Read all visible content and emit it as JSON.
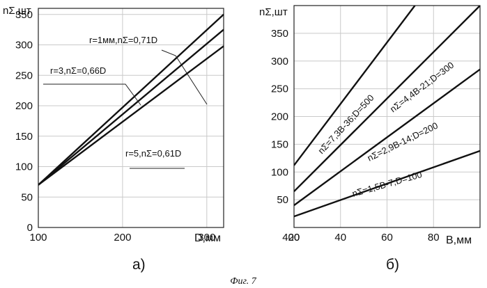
{
  "figure_caption": "Фиг. 7",
  "chart_data": [
    {
      "type": "line",
      "panel_label": "а)",
      "ylabel": "nΣ,шт",
      "xlabel": "D,мм",
      "xlim": [
        100,
        320
      ],
      "ylim": [
        0,
        360
      ],
      "xticks": [
        100,
        200,
        300,
        400
      ],
      "yticks": [
        0,
        50,
        100,
        150,
        200,
        250,
        300,
        350
      ],
      "grid": true,
      "series": [
        {
          "name": "r=1мм,nΣ=0,71D",
          "x": [
            100,
            320
          ],
          "y": [
            70,
            350
          ]
        },
        {
          "name": "r=3,nΣ=0,66D",
          "x": [
            100,
            320
          ],
          "y": [
            70,
            325
          ]
        },
        {
          "name": "r=5,nΣ=0,61D",
          "x": [
            100,
            320
          ],
          "y": [
            70,
            298
          ]
        }
      ]
    },
    {
      "type": "line",
      "panel_label": "б)",
      "ylabel": "nΣ,шт",
      "xlabel": "В,мм",
      "xlim": [
        20,
        100
      ],
      "ylim": [
        0,
        400
      ],
      "xticks": [
        20,
        40,
        60,
        80
      ],
      "yticks": [
        50,
        100,
        150,
        200,
        250,
        300,
        350
      ],
      "grid": true,
      "series": [
        {
          "name": "nΣ=7,3В-36;D=500",
          "x": [
            20,
            72
          ],
          "y": [
            112,
            400
          ]
        },
        {
          "name": "nΣ=4,4В-21;D=300",
          "x": [
            20,
            100
          ],
          "y": [
            65,
            400
          ]
        },
        {
          "name": "nΣ=2,9В-14;D=200",
          "x": [
            20,
            100
          ],
          "y": [
            40,
            285
          ]
        },
        {
          "name": "nΣ=1,5В-7;D=100",
          "x": [
            20,
            100
          ],
          "y": [
            20,
            138
          ]
        }
      ]
    }
  ]
}
